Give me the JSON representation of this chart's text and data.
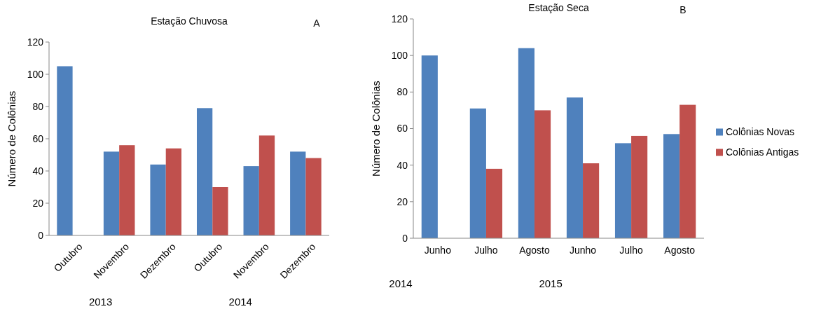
{
  "chart_data": [
    {
      "type": "bar",
      "title": "Estação Chuvosa",
      "ylabel": "Número de Colônias",
      "categories": [
        "Outubro",
        "Novembro",
        "Dezembro",
        "Outubro",
        "Novembro",
        "Dezembro"
      ],
      "ylim": [
        0,
        120
      ],
      "yticks": [
        0,
        20,
        40,
        60,
        80,
        100,
        120
      ],
      "annotations": [
        "A",
        "2013",
        "2014"
      ],
      "series": [
        {
          "color": "#4f81bd",
          "values": [
            105,
            52,
            44,
            79,
            43,
            52
          ]
        },
        {
          "color": "#c0504d",
          "values": [
            null,
            56,
            54,
            30,
            62,
            48
          ]
        }
      ]
    },
    {
      "type": "bar",
      "title": "Estação Seca",
      "ylabel": "Número de Colônias",
      "categories": [
        "Junho",
        "Julho",
        "Agosto",
        "Junho",
        "Julho",
        "Agosto"
      ],
      "ylim": [
        0,
        120
      ],
      "yticks": [
        0,
        20,
        40,
        60,
        80,
        100,
        120
      ],
      "legend": "right",
      "annotations": [
        "B",
        "2014",
        "2015"
      ],
      "series": [
        {
          "name": "Colônias Novas",
          "color": "#4f81bd",
          "values": [
            100,
            71,
            104,
            77,
            52,
            57
          ]
        },
        {
          "name": "Colônias Antigas",
          "color": "#c0504d",
          "values": [
            null,
            38,
            70,
            41,
            56,
            73
          ]
        }
      ]
    }
  ]
}
